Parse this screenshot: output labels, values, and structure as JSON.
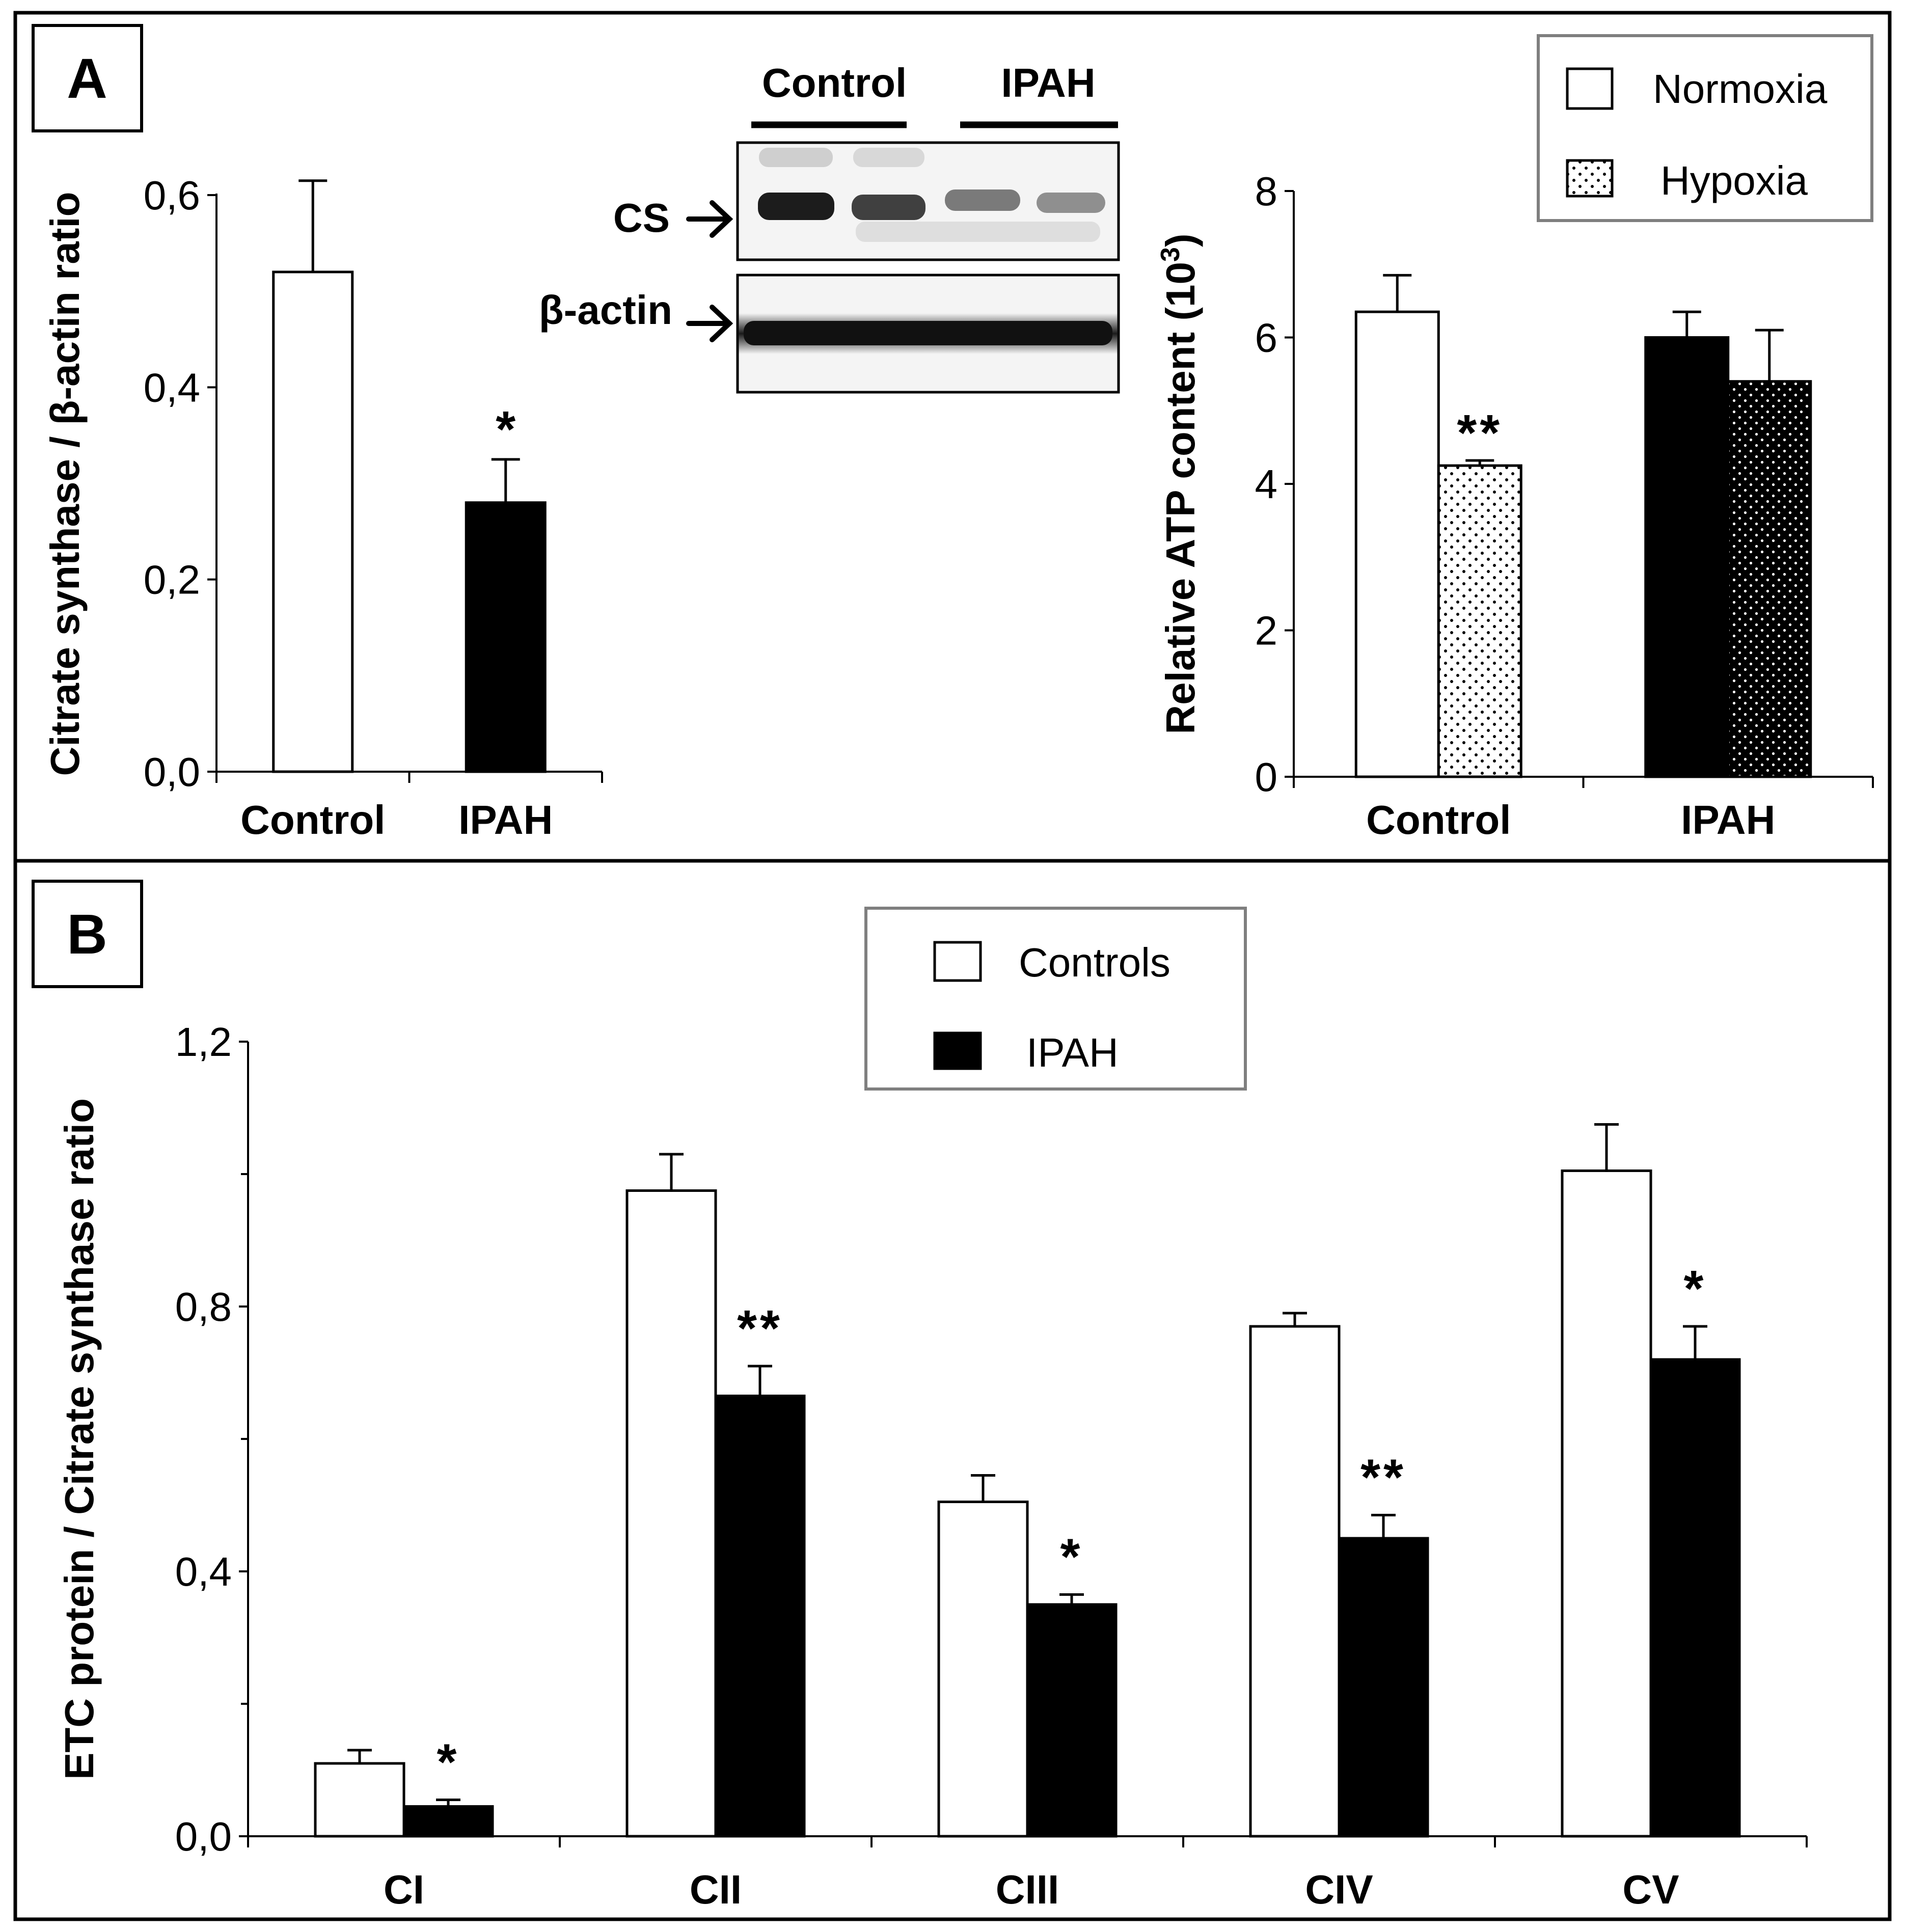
{
  "panel_labels": {
    "a": "A",
    "b": "B"
  },
  "blot": {
    "group_labels": [
      "Control",
      "IPAH"
    ],
    "row_labels": [
      "CS",
      "β-actin"
    ]
  },
  "chart_data": [
    {
      "id": "cs",
      "type": "bar",
      "ylabel": "Citrate synthase / β-actin ratio",
      "ylim": [
        0,
        0.6
      ],
      "yticks": [
        0,
        0.2,
        0.4,
        0.6
      ],
      "ytick_labels": [
        "0,0",
        "0,2",
        "0,4",
        "0,6"
      ],
      "categories": [
        "Control",
        "IPAH"
      ],
      "values": [
        0.52,
        0.28
      ],
      "errors": [
        0.095,
        0.045
      ],
      "fills": [
        "white",
        "black"
      ],
      "annotations": [
        "",
        "*"
      ]
    },
    {
      "id": "atp",
      "type": "bar",
      "ylabel": "Relative ATP content (10",
      "ylabel_sup": "3",
      "ylabel_end": ")",
      "ylim": [
        0,
        8
      ],
      "yticks": [
        0,
        2,
        4,
        6,
        8
      ],
      "ytick_labels": [
        "0",
        "2",
        "4",
        "6",
        "8"
      ],
      "categories": [
        "Control",
        "IPAH"
      ],
      "legend": [
        "Normoxia",
        "Hypoxia"
      ],
      "series": [
        {
          "name": "Normoxia",
          "values": [
            6.35,
            6.0
          ],
          "errors": [
            0.5,
            0.35
          ]
        },
        {
          "name": "Hypoxia",
          "values": [
            4.25,
            5.4
          ],
          "errors": [
            0.07,
            0.7
          ]
        }
      ],
      "annotations": [
        [
          "",
          "**"
        ],
        [
          "",
          ""
        ]
      ]
    },
    {
      "id": "etc",
      "type": "bar",
      "ylabel": "ETC protein / Citrate synthase ratio",
      "ylim": [
        0,
        1.2
      ],
      "yticks": [
        0,
        0.4,
        0.8,
        1.2
      ],
      "ytick_labels": [
        "0,0",
        "0,4",
        "0,8",
        "1,2"
      ],
      "categories": [
        "CI",
        "CII",
        "CIII",
        "CIV",
        "CV"
      ],
      "legend": [
        "Controls",
        "IPAH"
      ],
      "series": [
        {
          "name": "Controls",
          "values": [
            0.11,
            0.975,
            0.505,
            0.77,
            1.005
          ],
          "errors": [
            0.02,
            0.055,
            0.04,
            0.02,
            0.07
          ]
        },
        {
          "name": "IPAH",
          "values": [
            0.045,
            0.665,
            0.35,
            0.45,
            0.72
          ],
          "errors": [
            0.01,
            0.045,
            0.015,
            0.035,
            0.05
          ]
        }
      ],
      "annotations": [
        "*",
        "**",
        "*",
        "**",
        "*"
      ]
    }
  ]
}
